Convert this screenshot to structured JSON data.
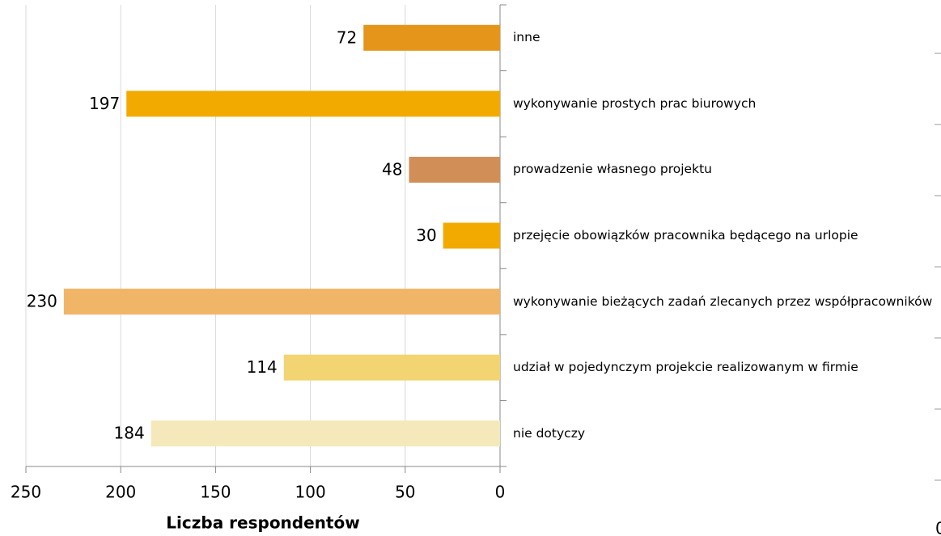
{
  "chart_data": {
    "type": "barh",
    "x_label": "Liczba respondentów",
    "categories": [
      "inne",
      "wykonywanie prostych prac biurowych",
      "prowadzenie własnego projektu",
      "przejęcie obowiązków pracownika będącego na urlopie",
      "wykonywanie bieżących zadań zlecanych przez współpracowników",
      "udział w pojedynczym projekcie realizowanym w firmie",
      "nie dotyczy"
    ],
    "values": [
      72,
      197,
      48,
      30,
      230,
      114,
      184
    ],
    "colors": [
      "#e5961a",
      "#f2aa00",
      "#d18f57",
      "#f2aa00",
      "#f0b566",
      "#f3d472",
      "#f5e9bb"
    ],
    "xlim": [
      250,
      0
    ],
    "xticks": [
      250,
      200,
      150,
      100,
      50,
      0
    ],
    "grid": true
  },
  "cropped_label": "0"
}
